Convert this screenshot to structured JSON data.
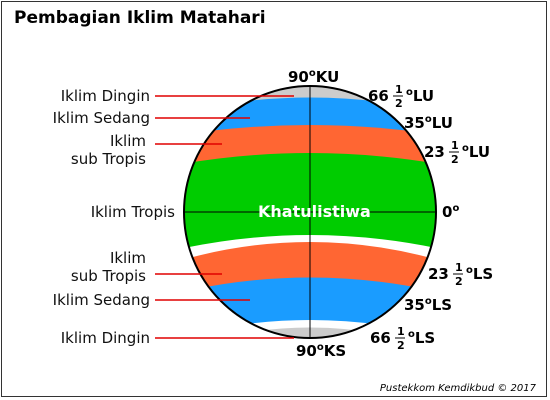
{
  "title": "Pembagian Iklim Matahari",
  "credit": "Pustekkom Kemdikbud © 2017",
  "center_label": "Khatulistiwa",
  "left_labels": {
    "dingin_top": "Iklim Dingin",
    "sedang_top": "Iklim Sedang",
    "subtropis_top_1": "Iklim",
    "subtropis_top_2": "sub Tropis",
    "tropis": "Iklim Tropis",
    "subtropis_bot_1": "Iklim",
    "subtropis_bot_2": "sub Tropis",
    "sedang_bot": "Iklim Sedang",
    "dingin_bot": "Iklim Dingin"
  },
  "latitudes": {
    "north_pole": {
      "num": "90",
      "sup": "o",
      "dir": "KU"
    },
    "lat_66_n": {
      "num": "66",
      "frac_top": "1",
      "frac_bot": "2",
      "sup": "o",
      "dir": "LU"
    },
    "lat_35_n": {
      "num": "35",
      "sup": "o",
      "dir": "LU"
    },
    "lat_23_n": {
      "num": "23",
      "frac_top": "1",
      "frac_bot": "2",
      "sup": "o",
      "dir": "LU"
    },
    "equator": {
      "num": "0",
      "sup": "o"
    },
    "lat_23_s": {
      "num": "23",
      "frac_top": "1",
      "frac_bot": "2",
      "sup": "o",
      "dir": "LS"
    },
    "lat_35_s": {
      "num": "35",
      "sup": "o",
      "dir": "LS"
    },
    "lat_66_s": {
      "num": "66",
      "frac_top": "1",
      "frac_bot": "2",
      "sup": "o",
      "dir": "LS"
    },
    "south_pole": {
      "num": "90",
      "sup": "o",
      "dir": "KS"
    }
  },
  "colors": {
    "cold": "#cccccc",
    "temperate": "#1a9cff",
    "subtropical": "#ff6633",
    "tropical": "#00cc00",
    "leader_line": "#e00000"
  }
}
